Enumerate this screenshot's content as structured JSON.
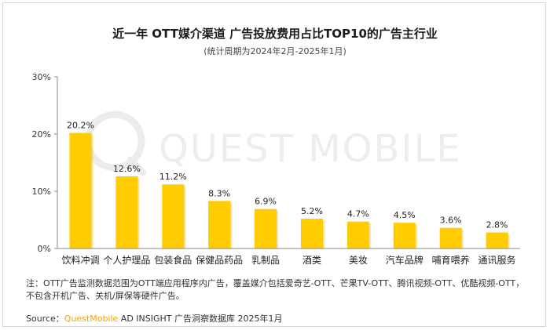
{
  "title": "近一年 OTT媒介渠道 广告投放费用占比TOP10的广告主行业",
  "subtitle": "(统计周期为2024年2月-2025年1月)",
  "watermark": "QUEST MOBILE",
  "colors": {
    "bar": "#FFCC00",
    "bar_shadow": "#E0A800",
    "axis": "#888888",
    "brand": "#F5A300"
  },
  "chart_data": {
    "type": "bar",
    "categories": [
      "饮料冲调",
      "个人护理品",
      "包装食品",
      "保健品药品",
      "乳制品",
      "酒类",
      "美妆",
      "汽车品牌",
      "哺育喂养",
      "通讯服务"
    ],
    "values": [
      20.2,
      12.6,
      11.2,
      8.3,
      6.9,
      5.2,
      4.7,
      4.5,
      3.6,
      2.8
    ],
    "value_labels": [
      "20.2%",
      "12.6%",
      "11.2%",
      "8.3%",
      "6.9%",
      "5.2%",
      "4.7%",
      "4.5%",
      "3.6%",
      "2.8%"
    ],
    "y_ticks": [
      "0%",
      "10%",
      "20%",
      "30%"
    ],
    "y_tick_values": [
      0,
      10,
      20,
      30
    ],
    "ylim": [
      0,
      30
    ],
    "grid": false
  },
  "footer": {
    "note": "注：OTT广告监测数据范围为OTT端应用程序内广告，覆盖媒介包括爱奇艺-OTT、芒果TV-OTT、腾讯视频-OTT、优酷视频-OTT，不包含开机广告、关机/屏保等硬件广告。",
    "source_prefix": "Source：",
    "source_brand": "QuestMobile",
    "source_rest": " AD INSIGHT 广告洞察数据库 2025年1月"
  }
}
